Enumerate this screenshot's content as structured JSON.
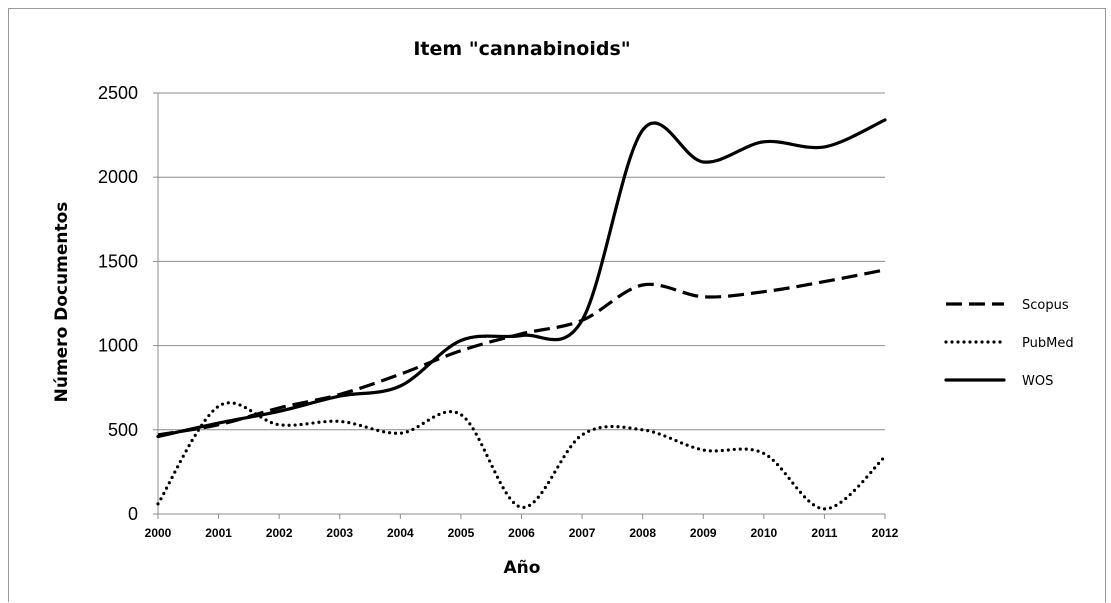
{
  "chart_data": {
    "type": "line",
    "title": "Item \"cannabinoids\"",
    "xlabel": "Año",
    "ylabel": "Número Documentos",
    "x": [
      2000,
      2001,
      2002,
      2003,
      2004,
      2005,
      2006,
      2007,
      2008,
      2009,
      2010,
      2011,
      2012
    ],
    "x_tick_labels": [
      "2000",
      "2001",
      "2002",
      "2003",
      "2004",
      "2005",
      "2006",
      "2007",
      "2008",
      "2009",
      "2010",
      "2011",
      "2012"
    ],
    "y_ticks": [
      0,
      500,
      1000,
      1500,
      2000,
      2500
    ],
    "y_tick_labels": [
      "0",
      "500",
      "1000",
      "1500",
      "2000",
      "2500"
    ],
    "ylim": [
      0,
      2500
    ],
    "grid": "horizontal",
    "legend_position": "right",
    "series": [
      {
        "name": "Scopus",
        "style": "dashed",
        "values": [
          470,
          530,
          630,
          710,
          830,
          970,
          1070,
          1150,
          1360,
          1290,
          1320,
          1380,
          1450
        ]
      },
      {
        "name": "PubMed",
        "style": "dotted",
        "values": [
          60,
          640,
          530,
          550,
          480,
          590,
          40,
          470,
          500,
          380,
          360,
          30,
          340
        ]
      },
      {
        "name": "WOS",
        "style": "solid",
        "values": [
          460,
          540,
          610,
          700,
          760,
          1030,
          1060,
          1150,
          2280,
          2090,
          2210,
          2180,
          2340
        ]
      }
    ]
  }
}
